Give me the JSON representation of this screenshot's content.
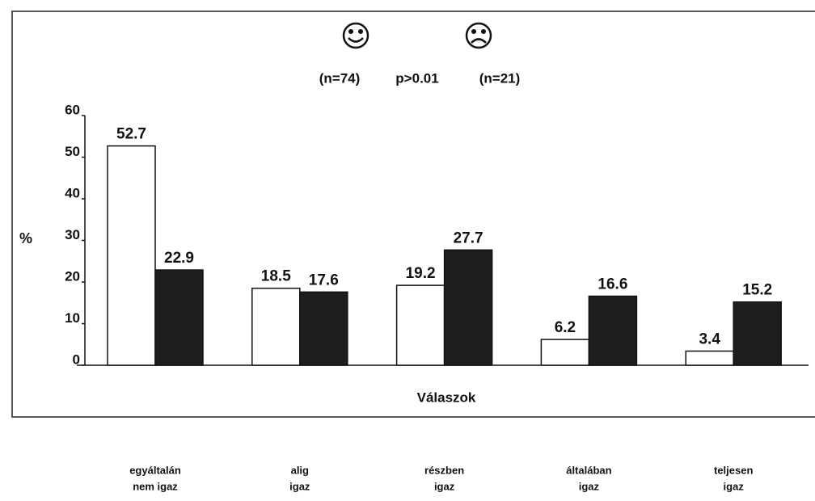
{
  "chart_data": {
    "type": "bar",
    "categories": [
      [
        "egyáltalán",
        "nem igaz"
      ],
      [
        "alig",
        "igaz"
      ],
      [
        "részben",
        "igaz"
      ],
      [
        "általában",
        "igaz"
      ],
      [
        "teljesen",
        "igaz"
      ]
    ],
    "series": [
      {
        "name": "(n=74)",
        "color": "#ffffff",
        "values": [
          52.7,
          18.5,
          19.2,
          6.2,
          3.4
        ]
      },
      {
        "name": "(n=21)",
        "color": "#1e1e1e",
        "values": [
          22.9,
          17.6,
          27.7,
          16.6,
          15.2
        ]
      }
    ],
    "annotation": "p>0.01",
    "ylabel": "%",
    "xlabel": "Válaszok",
    "ylim": [
      0,
      60
    ],
    "yticks": [
      0,
      10,
      20,
      30,
      40,
      50,
      60
    ]
  }
}
